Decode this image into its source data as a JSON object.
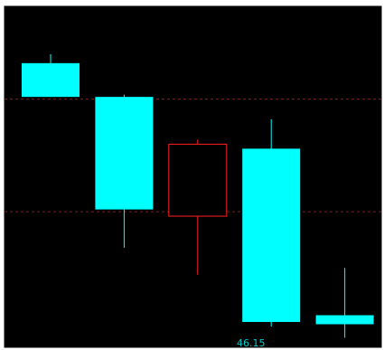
{
  "chart_data": {
    "type": "candlestick",
    "title": "",
    "xlabel": "",
    "ylabel": "",
    "grid": "dashed-horizontal",
    "colors": {
      "background": "#000000",
      "border": "#ffffff",
      "grid": "#8b1a1a",
      "up": "#ff2020",
      "down": "#00ffff",
      "label": "#00cccc"
    },
    "price_range": [
      46.15,
      52.8
    ],
    "gridlines": [
      51.2,
      48.7
    ],
    "candles": [
      {
        "open": 52.0,
        "close": 51.25,
        "high": 52.2,
        "low": 51.25,
        "direction": "down"
      },
      {
        "open": 51.25,
        "close": 48.75,
        "high": 51.3,
        "low": 47.9,
        "direction": "down"
      },
      {
        "open": 48.6,
        "close": 50.2,
        "high": 50.3,
        "low": 47.3,
        "direction": "up"
      },
      {
        "open": 50.1,
        "close": 46.25,
        "high": 50.75,
        "low": 46.15,
        "direction": "down"
      },
      {
        "open": 46.4,
        "close": 46.2,
        "high": 47.45,
        "low": 45.9,
        "direction": "down"
      }
    ],
    "low_label": "46.15"
  }
}
